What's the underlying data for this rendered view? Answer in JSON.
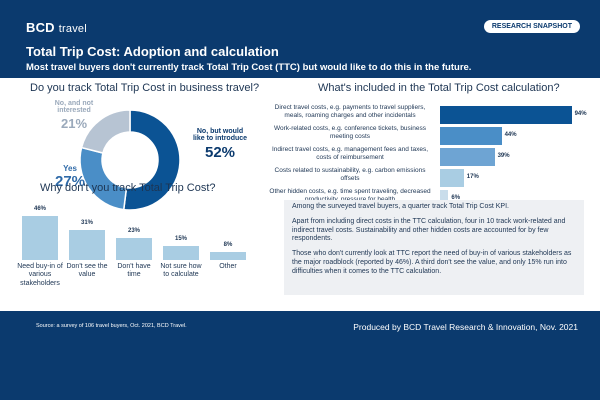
{
  "header": {
    "logo_text": "BCD",
    "logo_sub": "travel",
    "badge": "RESEARCH SNAPSHOT",
    "title": "Total Trip Cost: Adoption and calculation",
    "subtitle": "Most travel buyers don't currently track Total Trip Cost (TTC) but would like to do this in the future."
  },
  "chart_data": [
    {
      "type": "pie",
      "title": "Do you track Total Trip Cost in business travel?",
      "labels": [
        "No, but would like to introduce",
        "Yes",
        "No, and not interested"
      ],
      "values": [
        52,
        27,
        21
      ],
      "value_labels": [
        "52%",
        "27%",
        "21%"
      ],
      "colors": [
        "#0b5394",
        "#4a8ec7",
        "#b7c4d3"
      ]
    },
    {
      "type": "bar",
      "orientation": "horizontal",
      "title": "What's included in the Total Trip Cost calculation?",
      "categories": [
        "Direct travel costs, e.g. payments to travel suppliers, meals, roaming charges and other incidentals",
        "Work-related costs, e.g. conference tickets, business meeting costs",
        "Indirect travel costs, e.g. management fees and taxes, costs of reimbursement",
        "Costs related to sustainability, e.g. carbon emissions offsets",
        "Other hidden costs, e.g. time spent traveling, decreased productivity, pressure for health"
      ],
      "values": [
        94,
        44,
        39,
        17,
        6
      ],
      "value_labels": [
        "94%",
        "44%",
        "39%",
        "17%",
        "6%"
      ],
      "colors": [
        "#0b5394",
        "#4a8ec7",
        "#6ea4d3",
        "#a9cde3",
        "#c9ddeb"
      ],
      "ylim": [
        0,
        100
      ]
    },
    {
      "type": "bar",
      "title": "Why don't you track Total Trip Cost?",
      "categories": [
        "Need buy-in of various stakeholders",
        "Don't see the value",
        "Don't have time",
        "Not sure how to calculate",
        "Other"
      ],
      "values": [
        46,
        31,
        23,
        15,
        8
      ],
      "value_labels": [
        "46%",
        "31%",
        "23%",
        "15%",
        "8%"
      ],
      "color": "#a9cde3",
      "ylim": [
        0,
        50
      ]
    }
  ],
  "textbox": {
    "p1": "Among the surveyed travel buyers, a quarter track Total Trip Cost KPI.",
    "p2": "Apart from including direct costs in the TTC calculation, four in 10 track work-related and indirect travel costs. Sustainability and other hidden costs are accounted for by few respondents.",
    "p3": "Those who don't currently look at TTC report the need of buy-in of various stakeholders as the major roadblock (reported by 46%). A third don't see the value, and only 15% run into difficulties when it comes to the TTC calculation."
  },
  "footer": {
    "source": "Source: a survey of 106 travel buyers, Oct. 2021, BCD Travel.",
    "produced": "Produced by BCD Travel Research & Innovation, Nov. 2021"
  }
}
